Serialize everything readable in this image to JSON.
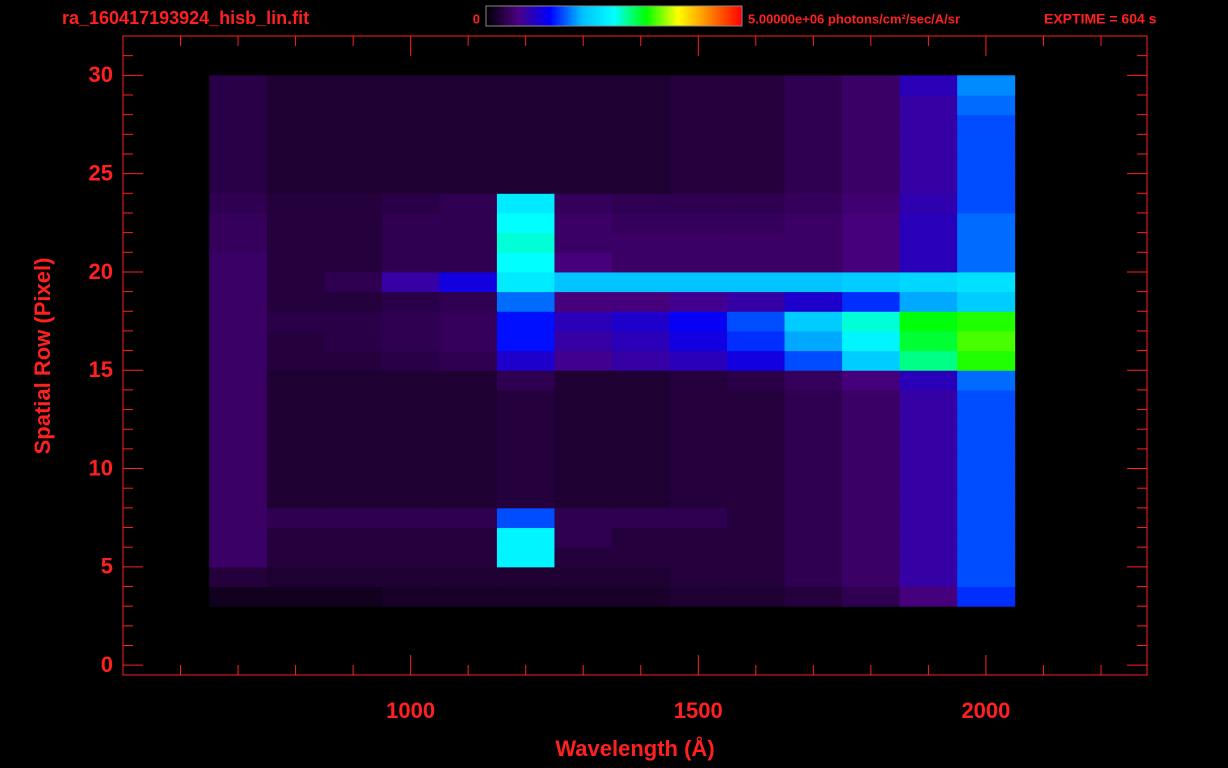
{
  "chart_data": {
    "type": "heatmap",
    "title": "ra_160417193924_hisb_lin.fit",
    "annotation": "EXPTIME = 604 s",
    "xlabel": "Wavelength (Å)",
    "ylabel": "Spatial Row (Pixel)",
    "xlim": [
      500,
      2280
    ],
    "ylim": [
      -0.5,
      32
    ],
    "xticks": [
      1000,
      1500,
      2000
    ],
    "yticks": [
      0,
      5,
      10,
      15,
      20,
      25,
      30
    ],
    "xminorticks": [
      600,
      700,
      800,
      900,
      1100,
      1200,
      1300,
      1400,
      1600,
      1700,
      1800,
      1900,
      2100,
      2200
    ],
    "yminorticks": [
      1,
      2,
      3,
      4,
      6,
      7,
      8,
      9,
      11,
      12,
      13,
      14,
      16,
      17,
      18,
      19,
      21,
      22,
      23,
      24,
      26,
      27,
      28,
      29,
      31
    ],
    "color": "#ff2020",
    "colormap": [
      "#000000",
      "#4a0080",
      "#0000ff",
      "#00c0ff",
      "#00ffff",
      "#00ff00",
      "#ffff00",
      "#ff8000",
      "#ff0000"
    ],
    "clim": [
      0,
      5000000
    ],
    "colorbar_ticks": [
      0,
      {
        "value": 5000000,
        "label": "5.00000e+06 photons/cm²/sec/A/sr"
      }
    ],
    "x_bins": [
      650,
      750,
      850,
      950,
      1050,
      1150,
      1250,
      1350,
      1450,
      1550,
      1650,
      1750,
      1850,
      1950,
      2050
    ],
    "y_bins": [
      3,
      4,
      5,
      6,
      7,
      8,
      9,
      10,
      11,
      12,
      13,
      14,
      15,
      16,
      17,
      18,
      19,
      20,
      21,
      22,
      23,
      24,
      25,
      26,
      27,
      28,
      29,
      30
    ],
    "values": [
      [
        150000,
        150000,
        150000,
        200000,
        200000,
        200000,
        200000,
        200000,
        250000,
        250000,
        300000,
        400000,
        600000,
        1400000
      ],
      [
        300000,
        250000,
        250000,
        250000,
        250000,
        250000,
        250000,
        250000,
        300000,
        300000,
        400000,
        500000,
        800000,
        1500000
      ],
      [
        500000,
        300000,
        300000,
        300000,
        300000,
        2400000,
        300000,
        300000,
        300000,
        300000,
        400000,
        500000,
        800000,
        1500000
      ],
      [
        500000,
        300000,
        300000,
        300000,
        300000,
        2400000,
        400000,
        300000,
        300000,
        300000,
        400000,
        500000,
        800000,
        1500000
      ],
      [
        500000,
        400000,
        400000,
        400000,
        400000,
        1500000,
        400000,
        400000,
        400000,
        300000,
        400000,
        500000,
        800000,
        1500000
      ],
      [
        500000,
        250000,
        250000,
        250000,
        250000,
        300000,
        250000,
        250000,
        300000,
        300000,
        400000,
        500000,
        800000,
        1500000
      ],
      [
        500000,
        250000,
        250000,
        250000,
        250000,
        300000,
        250000,
        250000,
        300000,
        300000,
        400000,
        500000,
        800000,
        1500000
      ],
      [
        500000,
        250000,
        250000,
        250000,
        250000,
        300000,
        250000,
        250000,
        300000,
        300000,
        400000,
        500000,
        800000,
        1500000
      ],
      [
        500000,
        250000,
        250000,
        250000,
        250000,
        300000,
        250000,
        250000,
        300000,
        300000,
        400000,
        500000,
        800000,
        1500000
      ],
      [
        500000,
        250000,
        250000,
        250000,
        250000,
        300000,
        250000,
        250000,
        300000,
        300000,
        400000,
        500000,
        800000,
        1500000
      ],
      [
        500000,
        250000,
        250000,
        250000,
        250000,
        300000,
        250000,
        250000,
        300000,
        300000,
        400000,
        500000,
        800000,
        1500000
      ],
      [
        500000,
        250000,
        250000,
        250000,
        250000,
        400000,
        250000,
        250000,
        300000,
        350000,
        450000,
        600000,
        900000,
        1600000
      ],
      [
        500000,
        300000,
        300000,
        350000,
        400000,
        1000000,
        700000,
        800000,
        900000,
        1100000,
        1500000,
        2000000,
        2800000,
        3200000
      ],
      [
        500000,
        300000,
        350000,
        400000,
        450000,
        1300000,
        800000,
        900000,
        1100000,
        1400000,
        1800000,
        2400000,
        3000000,
        3300000
      ],
      [
        500000,
        350000,
        350000,
        400000,
        450000,
        1300000,
        900000,
        1000000,
        1200000,
        1500000,
        2000000,
        2600000,
        3100000,
        3200000
      ],
      [
        500000,
        300000,
        300000,
        350000,
        400000,
        1600000,
        600000,
        600000,
        700000,
        800000,
        1000000,
        1400000,
        1800000,
        2000000
      ],
      [
        500000,
        300000,
        400000,
        800000,
        1100000,
        2300000,
        1900000,
        1900000,
        1900000,
        1900000,
        1900000,
        2000000,
        2100000,
        2200000
      ],
      [
        500000,
        300000,
        300000,
        400000,
        400000,
        2500000,
        600000,
        500000,
        500000,
        500000,
        500000,
        600000,
        900000,
        1600000
      ],
      [
        450000,
        300000,
        300000,
        400000,
        400000,
        2600000,
        500000,
        500000,
        500000,
        500000,
        500000,
        600000,
        900000,
        1600000
      ],
      [
        450000,
        300000,
        300000,
        400000,
        400000,
        2500000,
        500000,
        450000,
        450000,
        450000,
        500000,
        600000,
        900000,
        1600000
      ],
      [
        400000,
        300000,
        300000,
        350000,
        400000,
        2300000,
        450000,
        400000,
        400000,
        400000,
        450000,
        550000,
        850000,
        1500000
      ],
      [
        350000,
        250000,
        250000,
        250000,
        250000,
        250000,
        250000,
        250000,
        300000,
        300000,
        400000,
        500000,
        800000,
        1500000
      ],
      [
        350000,
        250000,
        250000,
        250000,
        250000,
        250000,
        250000,
        250000,
        300000,
        300000,
        400000,
        500000,
        800000,
        1500000
      ],
      [
        350000,
        250000,
        250000,
        250000,
        250000,
        250000,
        250000,
        250000,
        300000,
        300000,
        400000,
        500000,
        800000,
        1500000
      ],
      [
        350000,
        250000,
        250000,
        250000,
        250000,
        250000,
        250000,
        250000,
        300000,
        300000,
        400000,
        500000,
        800000,
        1500000
      ],
      [
        350000,
        250000,
        250000,
        250000,
        250000,
        250000,
        250000,
        250000,
        300000,
        300000,
        400000,
        500000,
        800000,
        1600000
      ],
      [
        350000,
        250000,
        250000,
        250000,
        250000,
        250000,
        250000,
        250000,
        300000,
        300000,
        400000,
        500000,
        900000,
        1700000
      ]
    ]
  }
}
